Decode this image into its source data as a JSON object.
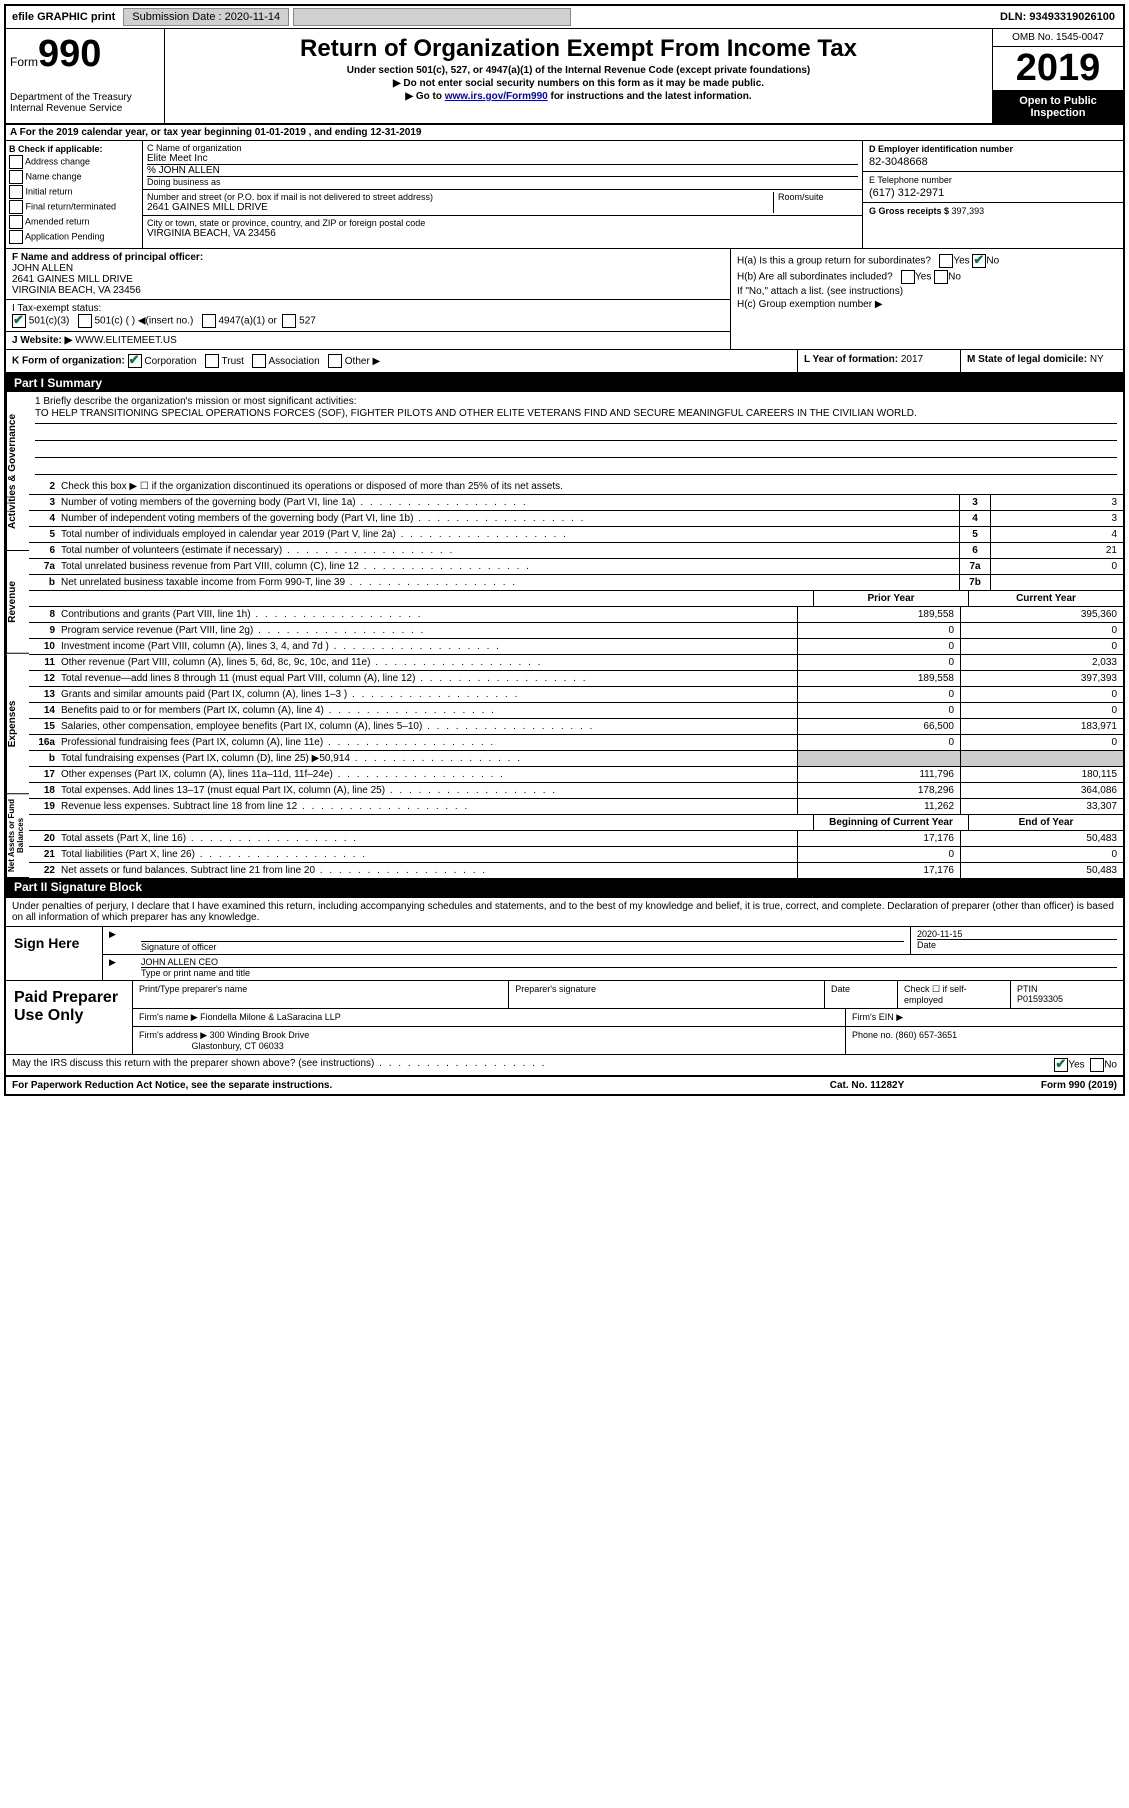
{
  "topbar": {
    "efile": "efile GRAPHIC print",
    "submission_label": "Submission Date : 2020-11-14",
    "dln": "DLN: 93493319026100"
  },
  "header": {
    "form_label": "Form",
    "form_num": "990",
    "dept": "Department of the Treasury Internal Revenue Service",
    "title": "Return of Organization Exempt From Income Tax",
    "sub1": "Under section 501(c), 527, or 4947(a)(1) of the Internal Revenue Code (except private foundations)",
    "sub2": "▶ Do not enter social security numbers on this form as it may be made public.",
    "sub3_pre": "▶ Go to ",
    "sub3_link": "www.irs.gov/Form990",
    "sub3_post": " for instructions and the latest information.",
    "omb": "OMB No. 1545-0047",
    "year": "2019",
    "inspection": "Open to Public Inspection"
  },
  "row_a": "A For the 2019 calendar year, or tax year beginning 01-01-2019    , and ending 12-31-2019",
  "col_b": {
    "label": "B Check if applicable:",
    "opts": [
      "Address change",
      "Name change",
      "Initial return",
      "Final return/terminated",
      "Amended return",
      "Application Pending"
    ]
  },
  "col_c": {
    "name_label": "C Name of organization",
    "name": "Elite Meet Inc",
    "care_of": "% JOHN ALLEN",
    "dba_label": "Doing business as",
    "addr_label": "Number and street (or P.O. box if mail is not delivered to street address)",
    "room_label": "Room/suite",
    "addr": "2641 GAINES MILL DRIVE",
    "city_label": "City or town, state or province, country, and ZIP or foreign postal code",
    "city": "VIRGINIA BEACH, VA  23456"
  },
  "col_d": {
    "ein_label": "D Employer identification number",
    "ein": "82-3048668",
    "tel_label": "E Telephone number",
    "tel": "(617) 312-2971",
    "gross_label": "G Gross receipts $ ",
    "gross": "397,393"
  },
  "section_f": {
    "label": "F Name and address of principal officer:",
    "name": "JOHN ALLEN",
    "addr1": "2641 GAINES MILL DRIVE",
    "addr2": "VIRGINIA BEACH, VA  23456"
  },
  "section_h": {
    "ha": "H(a)  Is this a group return for subordinates?",
    "hb": "H(b)  Are all subordinates included?",
    "hb_note": "If \"No,\" attach a list. (see instructions)",
    "hc": "H(c)  Group exemption number ▶"
  },
  "section_i": {
    "label": "I  Tax-exempt status:",
    "o1": "501(c)(3)",
    "o2": "501(c) (  ) ◀(insert no.)",
    "o3": "4947(a)(1) or",
    "o4": "527"
  },
  "section_j": {
    "label": "J  Website: ▶",
    "val": "WWW.ELITEMEET.US"
  },
  "section_k": "K Form of organization:",
  "k_opts": [
    "Corporation",
    "Trust",
    "Association",
    "Other ▶"
  ],
  "section_l": {
    "label": "L Year of formation: ",
    "val": "2017"
  },
  "section_m": {
    "label": "M State of legal domicile: ",
    "val": "NY"
  },
  "part1_label": "Part I      Summary",
  "mission": {
    "q": "1 Briefly describe the organization's mission or most significant activities:",
    "text": "TO HELP TRANSITIONING SPECIAL OPERATIONS FORCES (SOF), FIGHTER PILOTS AND OTHER ELITE VETERANS FIND AND SECURE MEANINGFUL CAREERS IN THE CIVILIAN WORLD."
  },
  "line2_text": "Check this box ▶ ☐  if the organization discontinued its operations or disposed of more than 25% of its net assets.",
  "gov_lines": [
    {
      "n": "3",
      "d": "Number of voting members of the governing body (Part VI, line 1a)",
      "box": "3",
      "v": "3"
    },
    {
      "n": "4",
      "d": "Number of independent voting members of the governing body (Part VI, line 1b)",
      "box": "4",
      "v": "3"
    },
    {
      "n": "5",
      "d": "Total number of individuals employed in calendar year 2019 (Part V, line 2a)",
      "box": "5",
      "v": "4"
    },
    {
      "n": "6",
      "d": "Total number of volunteers (estimate if necessary)",
      "box": "6",
      "v": "21"
    },
    {
      "n": "7a",
      "d": "Total unrelated business revenue from Part VIII, column (C), line 12",
      "box": "7a",
      "v": "0"
    },
    {
      "n": "b",
      "d": "Net unrelated business taxable income from Form 990-T, line 39",
      "box": "7b",
      "v": ""
    }
  ],
  "col_hdr": {
    "prior": "Prior Year",
    "current": "Current Year"
  },
  "rev_lines": [
    {
      "n": "8",
      "d": "Contributions and grants (Part VIII, line 1h)",
      "p": "189,558",
      "c": "395,360"
    },
    {
      "n": "9",
      "d": "Program service revenue (Part VIII, line 2g)",
      "p": "0",
      "c": "0"
    },
    {
      "n": "10",
      "d": "Investment income (Part VIII, column (A), lines 3, 4, and 7d )",
      "p": "0",
      "c": "0"
    },
    {
      "n": "11",
      "d": "Other revenue (Part VIII, column (A), lines 5, 6d, 8c, 9c, 10c, and 11e)",
      "p": "0",
      "c": "2,033"
    },
    {
      "n": "12",
      "d": "Total revenue—add lines 8 through 11 (must equal Part VIII, column (A), line 12)",
      "p": "189,558",
      "c": "397,393"
    }
  ],
  "exp_lines": [
    {
      "n": "13",
      "d": "Grants and similar amounts paid (Part IX, column (A), lines 1–3 )",
      "p": "0",
      "c": "0"
    },
    {
      "n": "14",
      "d": "Benefits paid to or for members (Part IX, column (A), line 4)",
      "p": "0",
      "c": "0"
    },
    {
      "n": "15",
      "d": "Salaries, other compensation, employee benefits (Part IX, column (A), lines 5–10)",
      "p": "66,500",
      "c": "183,971"
    },
    {
      "n": "16a",
      "d": "Professional fundraising fees (Part IX, column (A), line 11e)",
      "p": "0",
      "c": "0"
    },
    {
      "n": "b",
      "d": "Total fundraising expenses (Part IX, column (D), line 25) ▶50,914",
      "p": "",
      "c": "",
      "shade": true
    },
    {
      "n": "17",
      "d": "Other expenses (Part IX, column (A), lines 11a–11d, 11f–24e)",
      "p": "111,796",
      "c": "180,115"
    },
    {
      "n": "18",
      "d": "Total expenses. Add lines 13–17 (must equal Part IX, column (A), line 25)",
      "p": "178,296",
      "c": "364,086"
    },
    {
      "n": "19",
      "d": "Revenue less expenses. Subtract line 18 from line 12",
      "p": "11,262",
      "c": "33,307"
    }
  ],
  "na_hdr": {
    "begin": "Beginning of Current Year",
    "end": "End of Year"
  },
  "na_lines": [
    {
      "n": "20",
      "d": "Total assets (Part X, line 16)",
      "p": "17,176",
      "c": "50,483"
    },
    {
      "n": "21",
      "d": "Total liabilities (Part X, line 26)",
      "p": "0",
      "c": "0"
    },
    {
      "n": "22",
      "d": "Net assets or fund balances. Subtract line 21 from line 20",
      "p": "17,176",
      "c": "50,483"
    }
  ],
  "part2_label": "Part II      Signature Block",
  "sig_decl": "Under penalties of perjury, I declare that I have examined this return, including accompanying schedules and statements, and to the best of my knowledge and belief, it is true, correct, and complete. Declaration of preparer (other than officer) is based on all information of which preparer has any knowledge.",
  "sign_here": "Sign Here",
  "sig_officer_label": "Signature of officer",
  "sig_date_label": "Date",
  "sig_date": "2020-11-15",
  "sig_name": "JOHN ALLEN  CEO",
  "sig_name_label": "Type or print name and title",
  "paid_prep": "Paid Preparer Use Only",
  "prep": {
    "name_label": "Print/Type preparer's name",
    "sig_label": "Preparer's signature",
    "date_label": "Date",
    "check_label": "Check ☐ if self-employed",
    "ptin_label": "PTIN",
    "ptin": "P01593305",
    "firm_name_label": "Firm's name    ▶",
    "firm_name": "Fiondella Milone & LaSaracina LLP",
    "firm_ein_label": "Firm's EIN ▶",
    "firm_addr_label": "Firm's address ▶",
    "firm_addr1": "300 Winding Brook Drive",
    "firm_addr2": "Glastonbury, CT  06033",
    "phone_label": "Phone no. ",
    "phone": "(860) 657-3651"
  },
  "discuss": "May the IRS discuss this return with the preparer shown above? (see instructions)",
  "footer": {
    "a": "For Paperwork Reduction Act Notice, see the separate instructions.",
    "b": "Cat. No. 11282Y",
    "c": "Form 990 (2019)"
  },
  "side_labels": {
    "gov": "Activities & Governance",
    "rev": "Revenue",
    "exp": "Expenses",
    "na": "Net Assets or Fund Balances"
  }
}
